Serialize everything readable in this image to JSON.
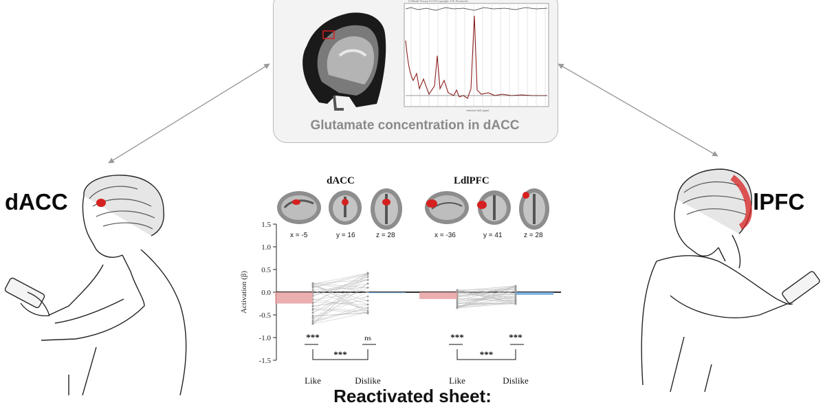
{
  "top_panel": {
    "caption": "Glutamate concentration in dACC"
  },
  "side_labels": {
    "left": "dACC",
    "right": "dlPFC"
  },
  "brain_panels": [
    {
      "title": "dACC",
      "coords": [
        "x = -5",
        "y = 16",
        "z = 28"
      ]
    },
    {
      "title": "LdlPFC",
      "coords": [
        "x = -36",
        "y = 41",
        "z = 28"
      ]
    }
  ],
  "bottom_caption": "Reactivated sheet:",
  "colors": {
    "like_bar": "#e8a1a1",
    "dislike_bar": "#6fa8dc",
    "highlight": "#d62020",
    "arrow": "#9a9a9a"
  },
  "chart_data": {
    "type": "bar",
    "ylabel": "Activation (β)",
    "ylim": [
      -1.5,
      1.5
    ],
    "yticks": [
      "1.5",
      "1.0",
      "0.5",
      "0.0",
      "-0.5",
      "-1.0",
      "-1.5"
    ],
    "groups": [
      {
        "name": "dACC",
        "categories": [
          "Like",
          "Dislike"
        ],
        "values": [
          -0.25,
          -0.02
        ],
        "markers": {
          "like": "***",
          "dislike": "ns",
          "pair": "***"
        }
      },
      {
        "name": "LdlPFC",
        "categories": [
          "Like",
          "Dislike"
        ],
        "values": [
          -0.15,
          -0.06
        ],
        "markers": {
          "like": "***",
          "dislike": "***",
          "pair": "***"
        }
      }
    ]
  }
}
